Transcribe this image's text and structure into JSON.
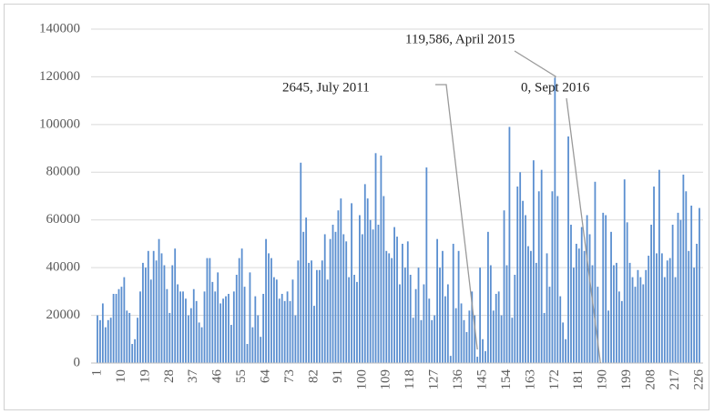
{
  "chart_data": {
    "type": "bar",
    "categories": [
      "1",
      null,
      null,
      null,
      null,
      null,
      null,
      null,
      null,
      "10",
      null,
      null,
      null,
      null,
      null,
      null,
      null,
      null,
      "19",
      null,
      null,
      null,
      null,
      null,
      null,
      null,
      null,
      "28",
      null,
      null,
      null,
      null,
      null,
      null,
      null,
      null,
      "37",
      null,
      null,
      null,
      null,
      null,
      null,
      null,
      null,
      "46",
      null,
      null,
      null,
      null,
      null,
      null,
      null,
      null,
      "55",
      null,
      null,
      null,
      null,
      null,
      null,
      null,
      null,
      "64",
      null,
      null,
      null,
      null,
      null,
      null,
      null,
      null,
      "73",
      null,
      null,
      null,
      null,
      null,
      null,
      null,
      null,
      "82",
      null,
      null,
      null,
      null,
      null,
      null,
      null,
      null,
      "91",
      null,
      null,
      null,
      null,
      null,
      null,
      null,
      null,
      "100",
      null,
      null,
      null,
      null,
      null,
      null,
      null,
      null,
      "109",
      null,
      null,
      null,
      null,
      null,
      null,
      null,
      null,
      "118",
      null,
      null,
      null,
      null,
      null,
      null,
      null,
      null,
      "127",
      null,
      null,
      null,
      null,
      null,
      null,
      null,
      null,
      "136",
      null,
      null,
      null,
      null,
      null,
      null,
      null,
      null,
      "145",
      null,
      null,
      null,
      null,
      null,
      null,
      null,
      null,
      "154",
      null,
      null,
      null,
      null,
      null,
      null,
      null,
      null,
      "163",
      null,
      null,
      null,
      null,
      null,
      null,
      null,
      null,
      "172",
      null,
      null,
      null,
      null,
      null,
      null,
      null,
      null,
      "181",
      null,
      null,
      null,
      null,
      null,
      null,
      null,
      null,
      "190",
      null,
      null,
      null,
      null,
      null,
      null,
      null,
      null,
      "199",
      null,
      null,
      null,
      null,
      null,
      null,
      null,
      null,
      "208",
      null,
      null,
      null,
      null,
      null,
      null,
      null,
      null,
      "217",
      null,
      null,
      null,
      null,
      null,
      null,
      null,
      null,
      "226"
    ],
    "values": [
      20000,
      18000,
      25000,
      15000,
      18000,
      19000,
      29000,
      29000,
      31000,
      32000,
      36000,
      22000,
      21000,
      8000,
      10000,
      19000,
      30000,
      42000,
      40000,
      47000,
      35000,
      47000,
      43000,
      52000,
      46000,
      41000,
      31000,
      21000,
      41000,
      48000,
      33000,
      30000,
      30000,
      27000,
      20000,
      23000,
      31000,
      26000,
      17000,
      15000,
      30000,
      44000,
      44000,
      34000,
      30000,
      38000,
      25000,
      27000,
      28000,
      29000,
      16000,
      30000,
      37000,
      44000,
      48000,
      32000,
      8000,
      38000,
      15000,
      28000,
      20000,
      11000,
      29000,
      52000,
      46000,
      44000,
      36000,
      35000,
      27000,
      29000,
      26000,
      30000,
      26000,
      35000,
      20000,
      43000,
      84000,
      55000,
      61000,
      42000,
      43000,
      24000,
      39000,
      39000,
      43000,
      54000,
      35000,
      52000,
      58000,
      55000,
      64000,
      69000,
      54000,
      51000,
      36000,
      67000,
      37000,
      34000,
      62000,
      54000,
      75000,
      69000,
      60000,
      56000,
      88000,
      58000,
      87000,
      70000,
      47000,
      46000,
      44000,
      57000,
      53000,
      33000,
      50000,
      40000,
      51000,
      37000,
      19000,
      31000,
      40000,
      18000,
      33000,
      82000,
      27000,
      18000,
      20000,
      52000,
      40000,
      47000,
      28000,
      33000,
      3000,
      50000,
      23000,
      47000,
      25000,
      18000,
      13000,
      22000,
      30000,
      20000,
      2645,
      40000,
      10000,
      5000,
      55000,
      41000,
      22000,
      29000,
      30000,
      20000,
      64000,
      41000,
      99000,
      19000,
      37000,
      74000,
      80000,
      68000,
      62000,
      49000,
      47000,
      85000,
      42000,
      72000,
      81000,
      21000,
      46000,
      32000,
      72000,
      119586,
      70000,
      28000,
      17000,
      10000,
      95000,
      58000,
      40000,
      50000,
      48000,
      57000,
      47000,
      62000,
      54000,
      41000,
      76000,
      32000,
      0,
      63000,
      62000,
      22000,
      55000,
      41000,
      42000,
      30000,
      26000,
      77000,
      59000,
      42000,
      36000,
      32000,
      39000,
      36000,
      33000,
      39000,
      45000,
      58000,
      74000,
      46000,
      81000,
      46000,
      36000,
      43000,
      44000,
      58000,
      36000,
      63000,
      60000,
      79000,
      72000,
      47000,
      66000,
      40000,
      50000,
      65000
    ],
    "color": "#5b8fd0",
    "ylim": [
      0,
      140000
    ],
    "yticks": [
      0,
      20000,
      40000,
      60000,
      80000,
      100000,
      120000,
      140000
    ],
    "grid": true,
    "annotations": [
      {
        "text": "119,586, April 2015"
      },
      {
        "text": "2645, July 2011"
      },
      {
        "text": "0, Sept 2016"
      }
    ]
  }
}
